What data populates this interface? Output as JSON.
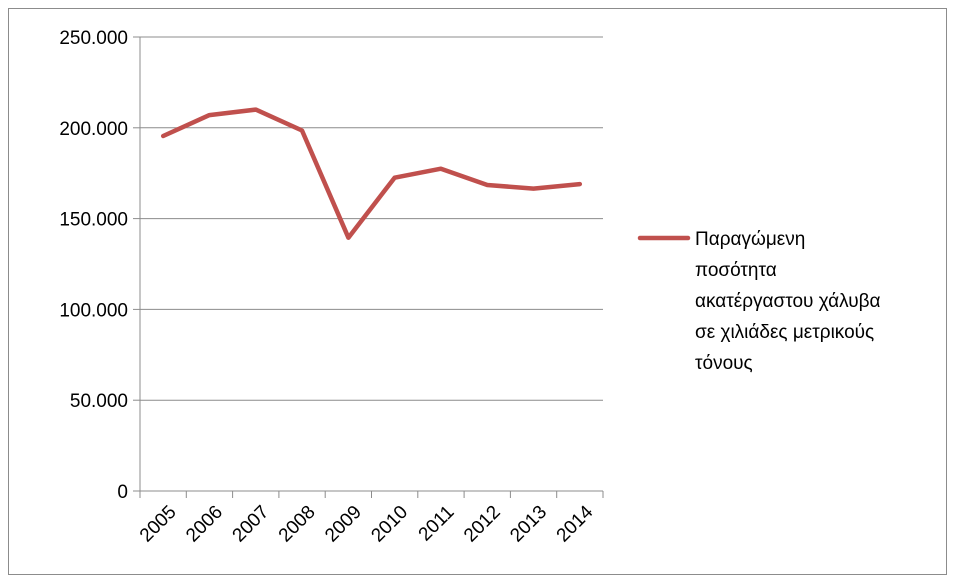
{
  "chart_data": {
    "type": "line",
    "categories": [
      "2005",
      "2006",
      "2007",
      "2008",
      "2009",
      "2010",
      "2011",
      "2012",
      "2013",
      "2014"
    ],
    "series": [
      {
        "name": "Παραγώμενη ποσότητα ακατέργαστου χάλυβα σε χιλιάδες μετρικούς τόνους",
        "name_lines": [
          "Παραγώμενη",
          "ποσότητα",
          "ακατέργαστου χάλυβα",
          "σε χιλιάδες μετρικούς",
          "τόνους"
        ],
        "values": [
          195500,
          207000,
          210000,
          198500,
          139500,
          172500,
          177500,
          168500,
          166500,
          169000
        ],
        "color": "#c0504d"
      }
    ],
    "y_ticks": [
      0,
      50000,
      100000,
      150000,
      200000,
      250000
    ],
    "y_tick_labels": [
      "0",
      "50.000",
      "100.000",
      "150.000",
      "200.000",
      "250.000"
    ],
    "ylim": [
      0,
      250000
    ],
    "grid": true,
    "legend_position": "right",
    "title": "",
    "xlabel": "",
    "ylabel": ""
  }
}
